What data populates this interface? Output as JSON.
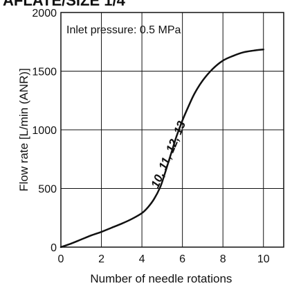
{
  "chart_data": {
    "type": "line",
    "title": "AFLATE/SIZE 1/4",
    "xlabel": "Number of needle rotations",
    "ylabel": "Flow rate [L/min (ANR)]",
    "xlim": [
      0,
      11
    ],
    "ylim": [
      0,
      2000
    ],
    "x_ticks": [
      0,
      2,
      4,
      6,
      8,
      10
    ],
    "y_ticks": [
      0,
      500,
      1000,
      1500,
      2000
    ],
    "grid": true,
    "annotation": "Inlet pressure: 0.5 MPa",
    "series": [
      {
        "name": "10, 11, 12, 13",
        "x": [
          0,
          0.5,
          1,
          1.5,
          2,
          2.5,
          3,
          3.5,
          4,
          4.3,
          4.6,
          4.9,
          5.1,
          5.3,
          5.5,
          5.7,
          6.0,
          6.3,
          6.6,
          7.0,
          7.5,
          8.0,
          8.5,
          9.0,
          9.5,
          10.0
        ],
        "y": [
          0,
          30,
          65,
          100,
          130,
          165,
          200,
          240,
          290,
          340,
          410,
          510,
          610,
          720,
          830,
          940,
          1080,
          1200,
          1310,
          1420,
          1520,
          1590,
          1630,
          1660,
          1675,
          1685
        ]
      }
    ]
  }
}
